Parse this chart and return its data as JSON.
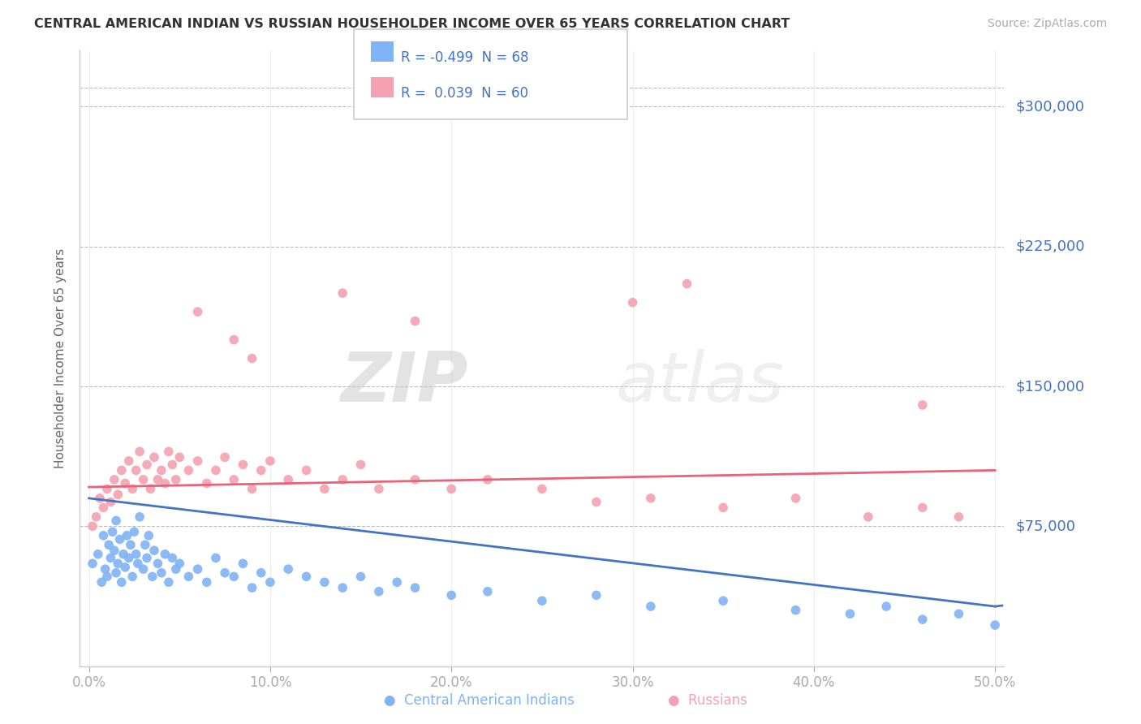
{
  "title": "CENTRAL AMERICAN INDIAN VS RUSSIAN HOUSEHOLDER INCOME OVER 65 YEARS CORRELATION CHART",
  "source": "Source: ZipAtlas.com",
  "ylabel": "Householder Income Over 65 years",
  "y_tick_labels": [
    "$75,000",
    "$150,000",
    "$225,000",
    "$300,000"
  ],
  "y_tick_values": [
    75000,
    150000,
    225000,
    300000
  ],
  "x_tick_labels": [
    "0.0%",
    "10.0%",
    "20.0%",
    "30.0%",
    "40.0%",
    "50.0%"
  ],
  "x_tick_values": [
    0,
    0.1,
    0.2,
    0.3,
    0.4,
    0.5
  ],
  "xlim": [
    -0.005,
    0.505
  ],
  "ylim": [
    0,
    330000
  ],
  "r_blue": -0.499,
  "n_blue": 68,
  "r_pink": 0.039,
  "n_pink": 60,
  "blue_line_color": "#4472c4",
  "pink_line_color": "#e8637a",
  "dot_blue_color": "#7fb3f5",
  "dot_pink_color": "#f5a0b0",
  "watermark_zip": "ZIP",
  "watermark_atlas": "atlas",
  "background_color": "#ffffff",
  "grid_color": "#bbbbbb",
  "title_color": "#333333",
  "tick_label_color": "#4472c4",
  "blue_scatter_x": [
    0.002,
    0.005,
    0.007,
    0.008,
    0.009,
    0.01,
    0.011,
    0.012,
    0.013,
    0.014,
    0.015,
    0.015,
    0.016,
    0.017,
    0.018,
    0.019,
    0.02,
    0.021,
    0.022,
    0.023,
    0.024,
    0.025,
    0.026,
    0.027,
    0.028,
    0.03,
    0.031,
    0.032,
    0.033,
    0.035,
    0.036,
    0.038,
    0.04,
    0.042,
    0.044,
    0.046,
    0.048,
    0.05,
    0.055,
    0.06,
    0.065,
    0.07,
    0.075,
    0.08,
    0.085,
    0.09,
    0.095,
    0.1,
    0.11,
    0.12,
    0.13,
    0.14,
    0.15,
    0.16,
    0.17,
    0.18,
    0.2,
    0.22,
    0.25,
    0.28,
    0.31,
    0.35,
    0.39,
    0.42,
    0.44,
    0.46,
    0.48,
    0.5
  ],
  "blue_scatter_y": [
    55000,
    60000,
    45000,
    70000,
    52000,
    48000,
    65000,
    58000,
    72000,
    62000,
    50000,
    78000,
    55000,
    68000,
    45000,
    60000,
    53000,
    70000,
    58000,
    65000,
    48000,
    72000,
    60000,
    55000,
    80000,
    52000,
    65000,
    58000,
    70000,
    48000,
    62000,
    55000,
    50000,
    60000,
    45000,
    58000,
    52000,
    55000,
    48000,
    52000,
    45000,
    58000,
    50000,
    48000,
    55000,
    42000,
    50000,
    45000,
    52000,
    48000,
    45000,
    42000,
    48000,
    40000,
    45000,
    42000,
    38000,
    40000,
    35000,
    38000,
    32000,
    35000,
    30000,
    28000,
    32000,
    25000,
    28000,
    22000
  ],
  "pink_scatter_x": [
    0.002,
    0.004,
    0.006,
    0.008,
    0.01,
    0.012,
    0.014,
    0.016,
    0.018,
    0.02,
    0.022,
    0.024,
    0.026,
    0.028,
    0.03,
    0.032,
    0.034,
    0.036,
    0.038,
    0.04,
    0.042,
    0.044,
    0.046,
    0.048,
    0.05,
    0.055,
    0.06,
    0.065,
    0.07,
    0.075,
    0.08,
    0.085,
    0.09,
    0.095,
    0.1,
    0.11,
    0.12,
    0.13,
    0.14,
    0.15,
    0.16,
    0.18,
    0.2,
    0.22,
    0.25,
    0.28,
    0.31,
    0.35,
    0.39,
    0.43,
    0.46,
    0.48,
    0.06,
    0.08,
    0.09,
    0.14,
    0.18,
    0.3,
    0.33,
    0.46
  ],
  "pink_scatter_y": [
    75000,
    80000,
    90000,
    85000,
    95000,
    88000,
    100000,
    92000,
    105000,
    98000,
    110000,
    95000,
    105000,
    115000,
    100000,
    108000,
    95000,
    112000,
    100000,
    105000,
    98000,
    115000,
    108000,
    100000,
    112000,
    105000,
    110000,
    98000,
    105000,
    112000,
    100000,
    108000,
    95000,
    105000,
    110000,
    100000,
    105000,
    95000,
    100000,
    108000,
    95000,
    100000,
    95000,
    100000,
    95000,
    88000,
    90000,
    85000,
    90000,
    80000,
    85000,
    80000,
    190000,
    175000,
    165000,
    200000,
    185000,
    195000,
    205000,
    140000
  ]
}
